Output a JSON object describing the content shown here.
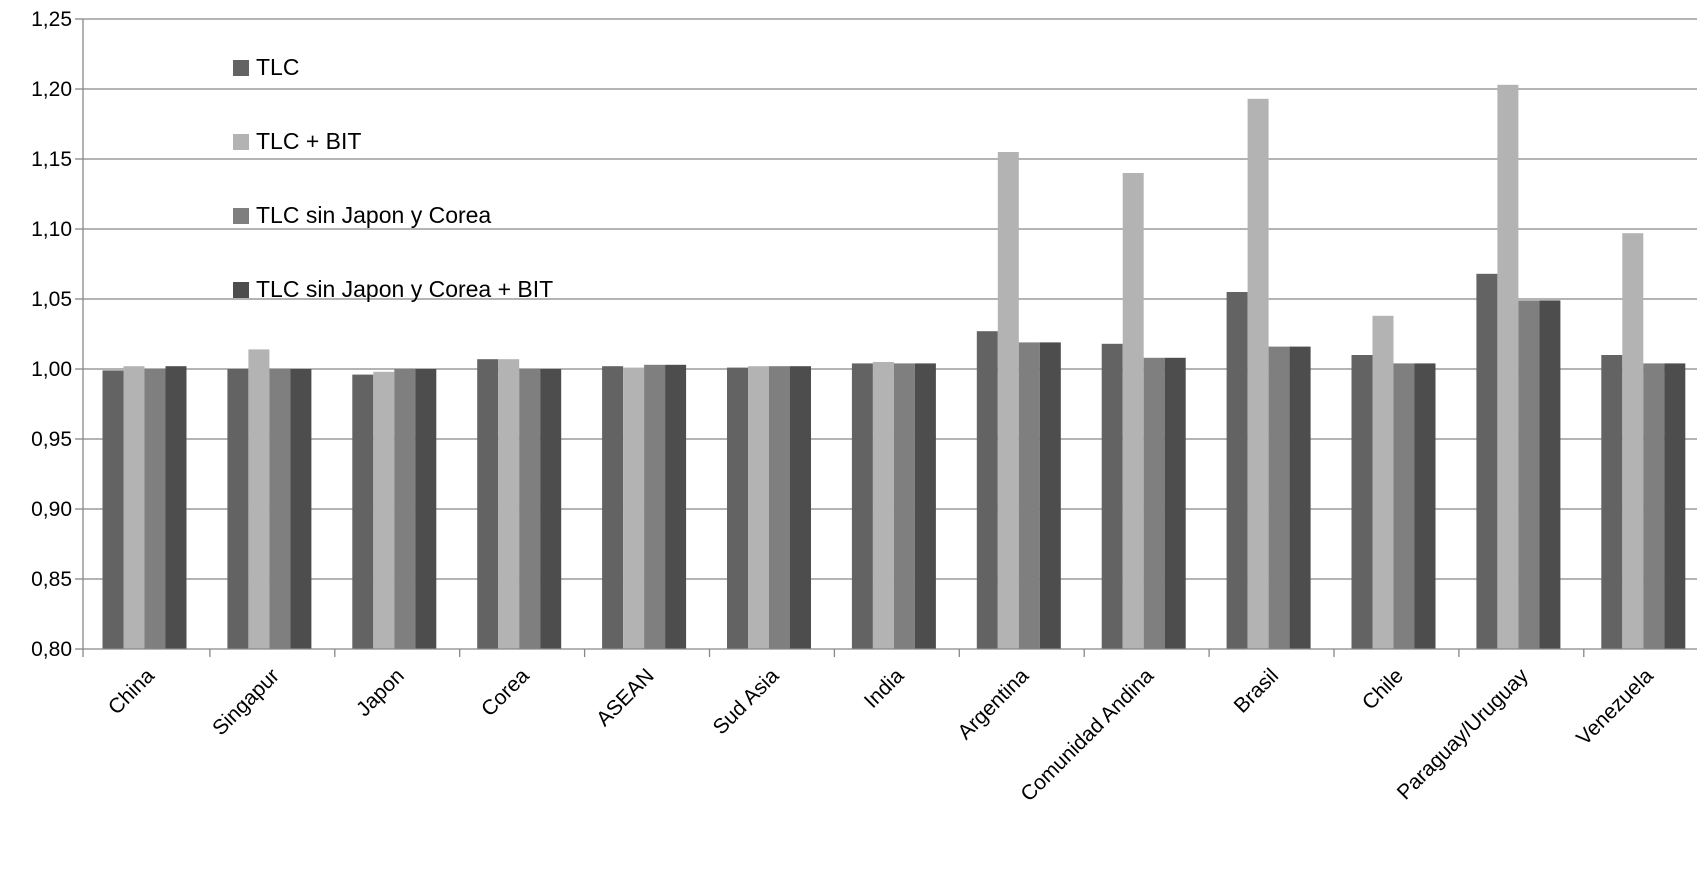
{
  "chart_data": {
    "type": "bar",
    "title": "",
    "xlabel": "",
    "ylabel": "",
    "ylim": [
      0.8,
      1.25
    ],
    "yticks": [
      "0,80",
      "0,85",
      "0,90",
      "0,95",
      "1,00",
      "1,05",
      "1,10",
      "1,15",
      "1,20",
      "1,25"
    ],
    "grid": true,
    "legend_position": "top-left",
    "categories": [
      "China",
      "Singapur",
      "Japon",
      "Corea",
      "ASEAN",
      "Sud Asia",
      "India",
      "Argentina",
      "Comunidad Andina",
      "Brasil",
      "Chile",
      "Paraguay/Uruguay",
      "Venezuela"
    ],
    "series": [
      {
        "name": "TLC",
        "color": "#636363",
        "values": [
          0.999,
          1.0,
          0.996,
          1.007,
          1.002,
          1.001,
          1.004,
          1.027,
          1.018,
          1.055,
          1.01,
          1.068,
          1.01
        ]
      },
      {
        "name": "TLC + BIT",
        "color": "#b3b3b3",
        "values": [
          1.002,
          1.014,
          0.998,
          1.007,
          1.001,
          1.002,
          1.005,
          1.155,
          1.14,
          1.193,
          1.038,
          1.203,
          1.097
        ]
      },
      {
        "name": "TLC sin Japon y Corea",
        "color": "#7f7f7f",
        "values": [
          1.0,
          1.0,
          1.0,
          1.0,
          1.003,
          1.002,
          1.004,
          1.019,
          1.008,
          1.016,
          1.004,
          1.049,
          1.004
        ]
      },
      {
        "name": "TLC sin Japon y Corea + BIT",
        "color": "#4d4d4d",
        "values": [
          1.002,
          1.0,
          1.0,
          1.0,
          1.003,
          1.002,
          1.004,
          1.019,
          1.008,
          1.016,
          1.004,
          1.049,
          1.004
        ]
      }
    ]
  }
}
